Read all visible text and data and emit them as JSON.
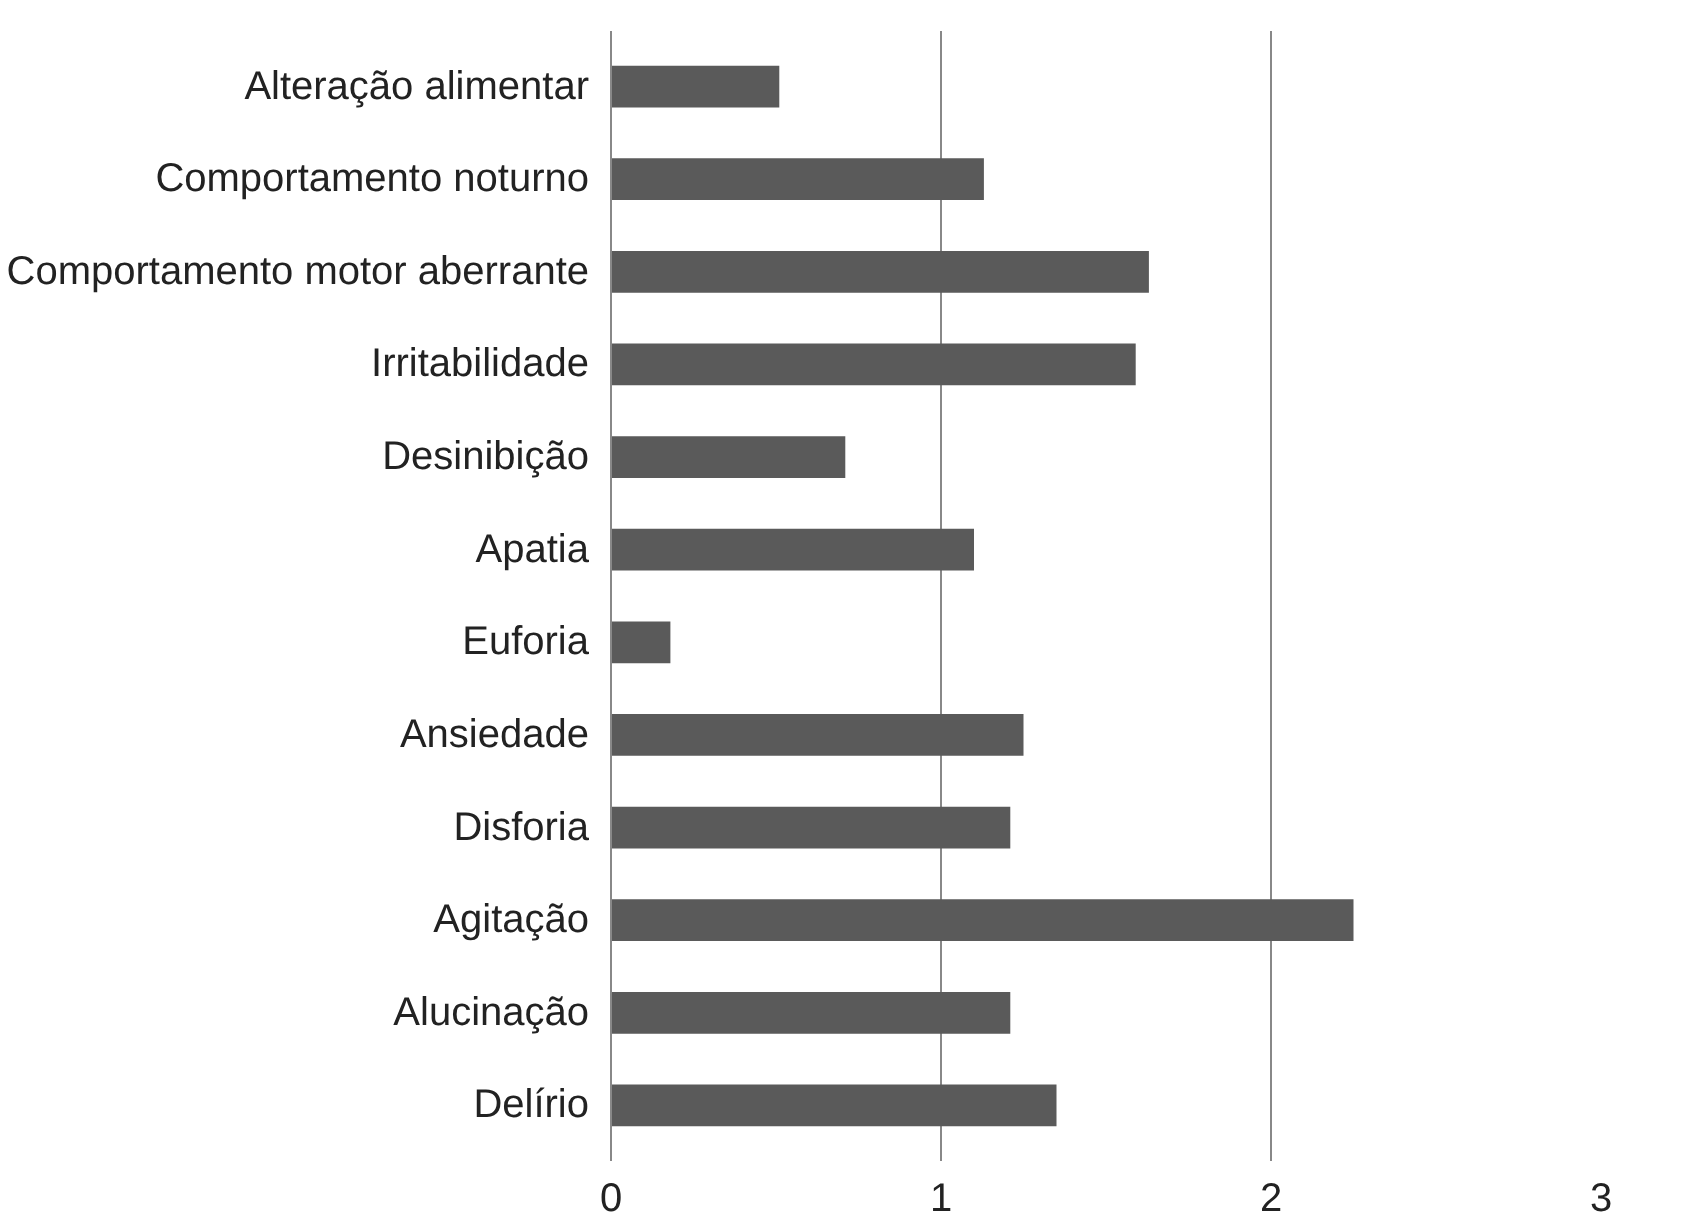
{
  "chart_data": {
    "type": "bar",
    "orientation": "horizontal",
    "categories": [
      "Alteração alimentar",
      "Comportamento noturno",
      "Comportamento motor aberrante",
      "Irritabilidade",
      "Desinibição",
      "Apatia",
      "Euforia",
      "Ansiedade",
      "Disforia",
      "Agitação",
      "Alucinação",
      "Delírio"
    ],
    "values": [
      0.51,
      1.13,
      1.63,
      1.59,
      0.71,
      1.1,
      0.18,
      1.25,
      1.21,
      2.25,
      1.21,
      1.35
    ],
    "color": "#5a5a5a",
    "xlim": [
      0,
      3
    ],
    "xticks": [
      0,
      1,
      2,
      3
    ],
    "grid": "x"
  }
}
